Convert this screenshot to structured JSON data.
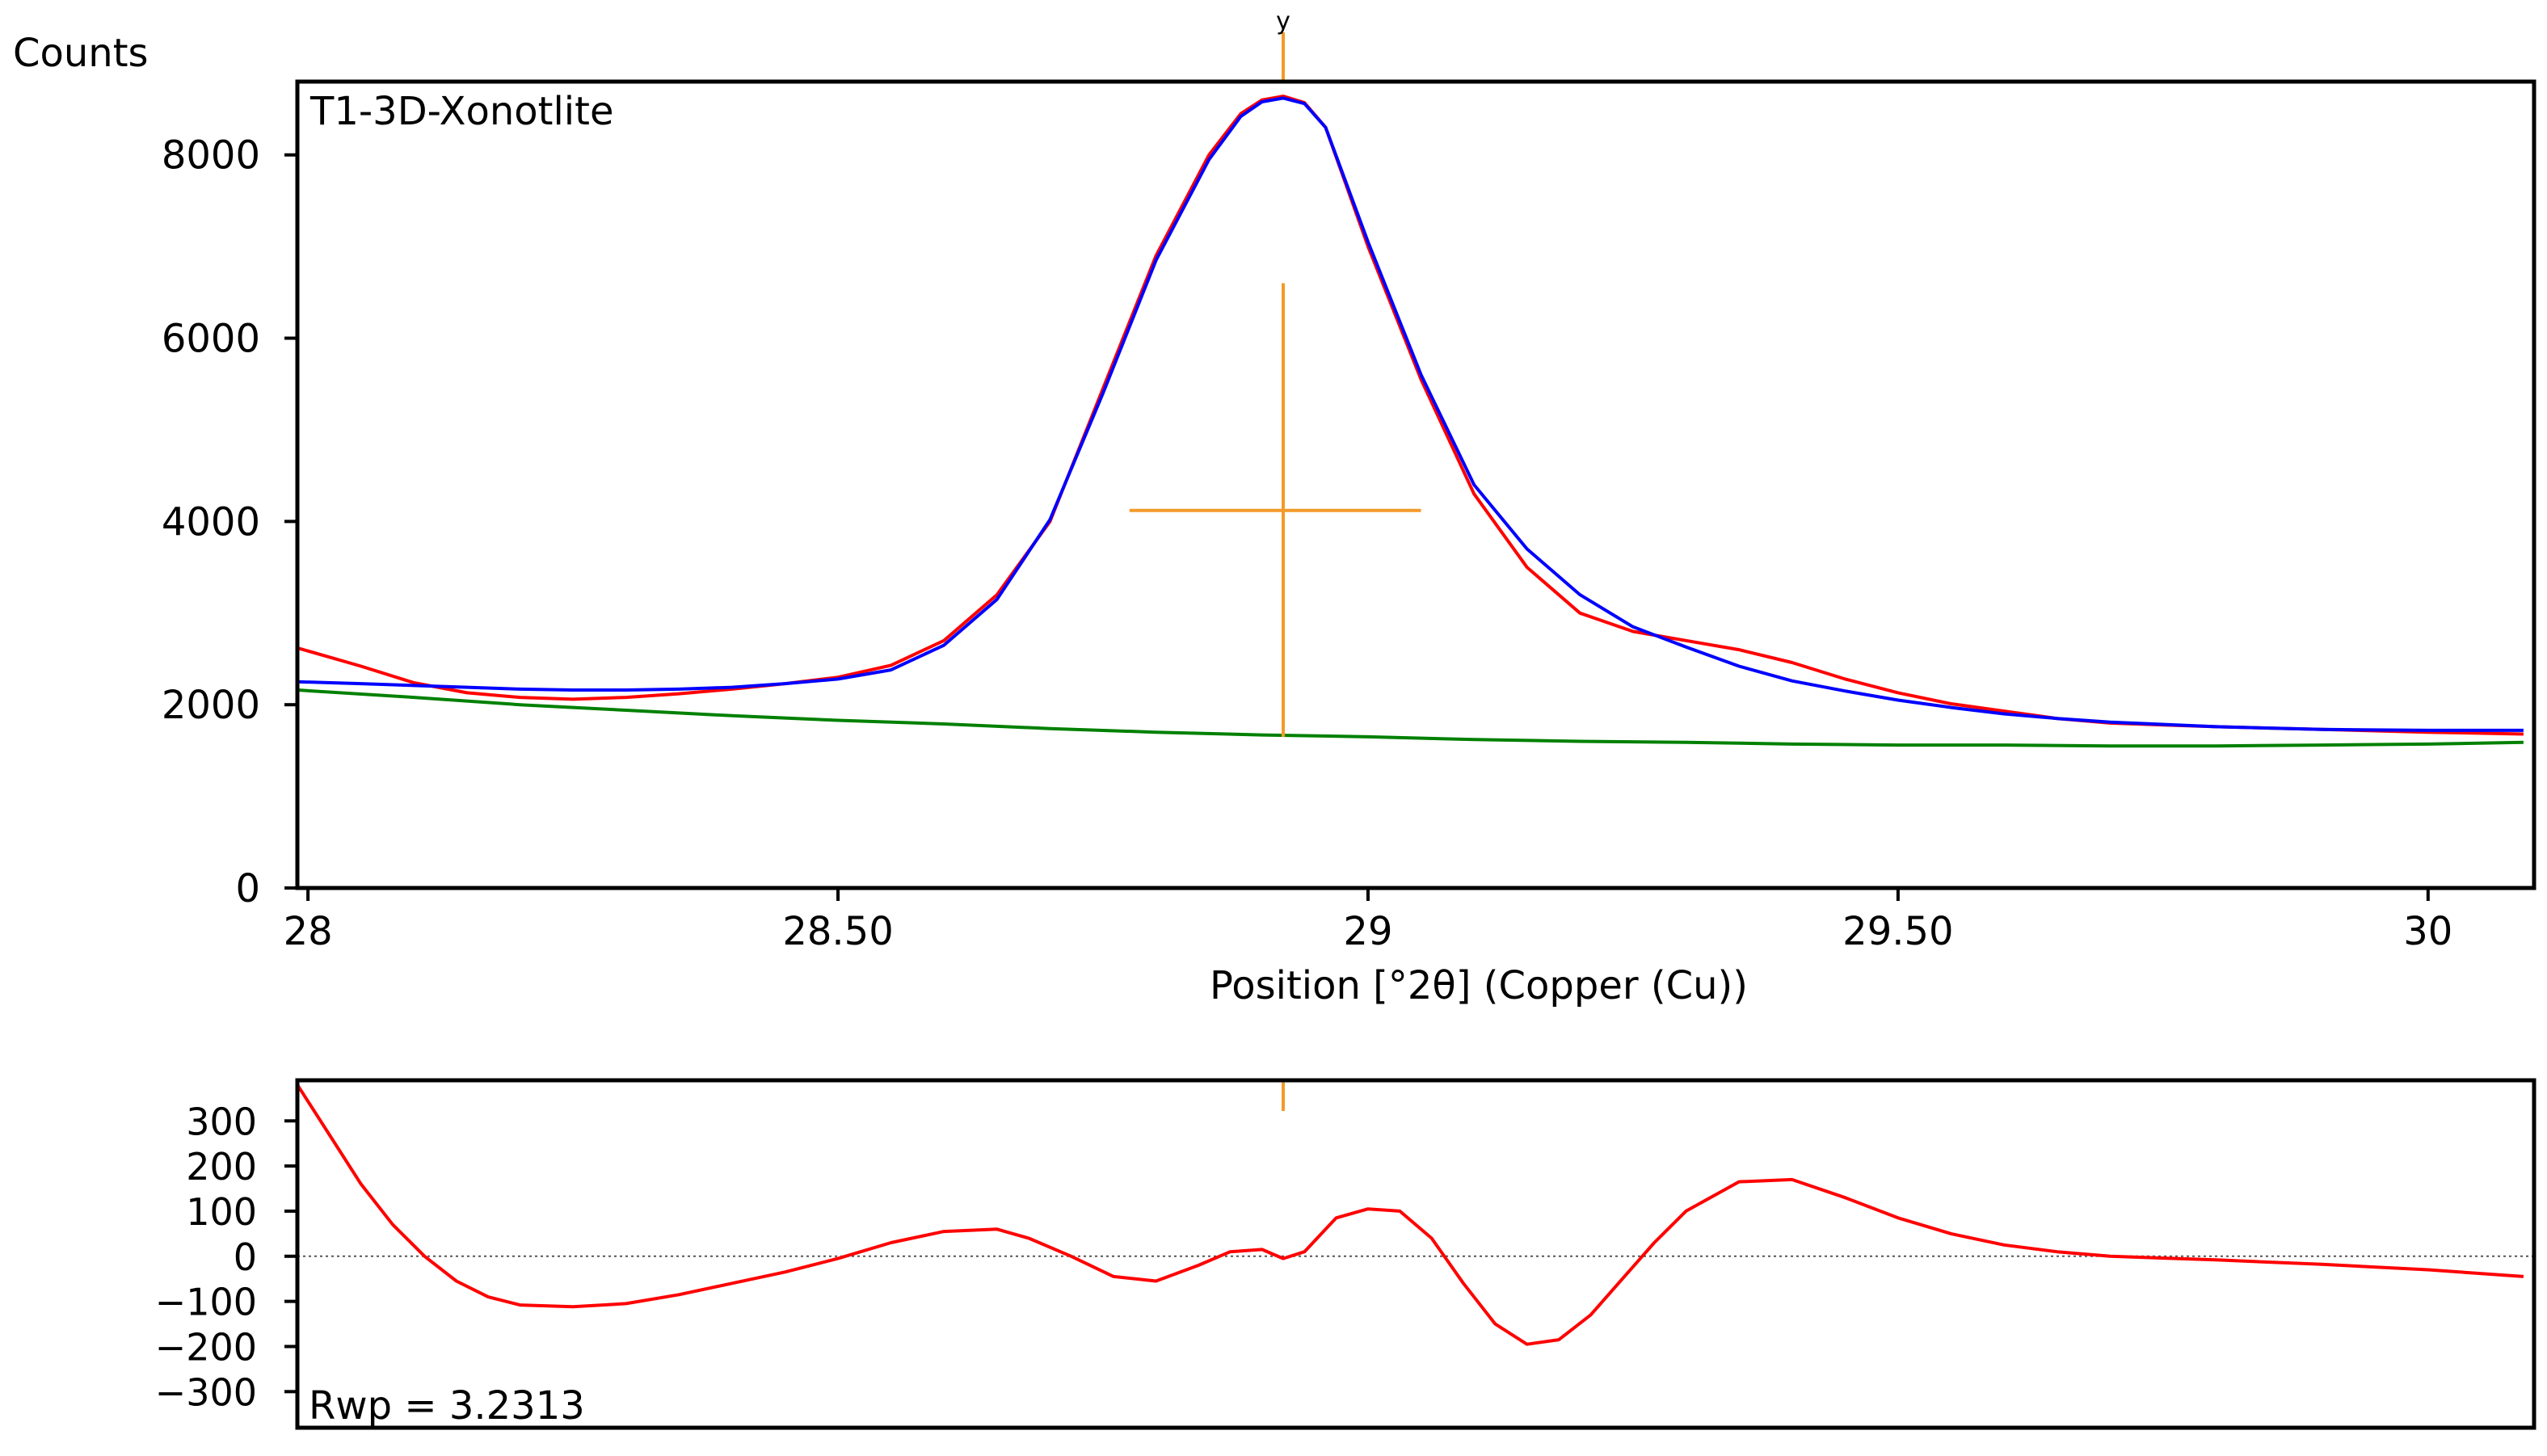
{
  "chart_data": [
    {
      "type": "line",
      "title": "T1-3D-Xonotlite",
      "xlabel": "Position [°2θ] (Copper (Cu))",
      "ylabel": "Counts",
      "xlim": [
        27.99,
        30.1
      ],
      "ylim": [
        0,
        8800
      ],
      "x_ticks": [
        28,
        28.5,
        29,
        29.5,
        30
      ],
      "x_tick_labels": [
        "28",
        "28.50",
        "29",
        "29.50",
        "30"
      ],
      "y_ticks": [
        0,
        2000,
        4000,
        6000,
        8000
      ],
      "y_tick_labels": [
        "0",
        "2000",
        "4000",
        "6000",
        "8000"
      ],
      "grid": false,
      "colors": {
        "observed": "#ff0000",
        "calculated": "#0000ff",
        "background": "#008000",
        "marker": "#f39a2a"
      },
      "series": [
        {
          "role": "observed",
          "x": [
            27.99,
            28.05,
            28.1,
            28.15,
            28.2,
            28.25,
            28.3,
            28.35,
            28.4,
            28.45,
            28.5,
            28.55,
            28.6,
            28.65,
            28.7,
            28.75,
            28.8,
            28.85,
            28.88,
            28.9,
            28.92,
            28.94,
            28.96,
            29.0,
            29.05,
            29.1,
            29.15,
            29.2,
            29.25,
            29.3,
            29.35,
            29.4,
            29.45,
            29.5,
            29.55,
            29.6,
            29.65,
            29.7,
            29.8,
            29.9,
            30.0,
            30.09
          ],
          "y": [
            2620,
            2420,
            2240,
            2130,
            2080,
            2060,
            2080,
            2120,
            2170,
            2230,
            2300,
            2430,
            2700,
            3200,
            4000,
            5450,
            6900,
            8000,
            8450,
            8600,
            8640,
            8570,
            8300,
            7000,
            5550,
            4300,
            3500,
            3000,
            2800,
            2700,
            2600,
            2460,
            2280,
            2130,
            2010,
            1930,
            1850,
            1800,
            1760,
            1730,
            1700,
            1680
          ]
        },
        {
          "role": "calculated",
          "x": [
            27.99,
            28.05,
            28.1,
            28.15,
            28.2,
            28.25,
            28.3,
            28.35,
            28.4,
            28.45,
            28.5,
            28.55,
            28.6,
            28.65,
            28.7,
            28.75,
            28.8,
            28.85,
            28.88,
            28.9,
            28.92,
            28.94,
            28.96,
            29.0,
            29.05,
            29.1,
            29.15,
            29.2,
            29.25,
            29.3,
            29.35,
            29.4,
            29.45,
            29.5,
            29.55,
            29.6,
            29.65,
            29.7,
            29.8,
            29.9,
            30.0,
            30.09
          ],
          "y": [
            2250,
            2230,
            2210,
            2190,
            2170,
            2160,
            2160,
            2170,
            2190,
            2230,
            2280,
            2380,
            2650,
            3150,
            4020,
            5400,
            6850,
            7950,
            8420,
            8580,
            8620,
            8560,
            8300,
            7050,
            5600,
            4400,
            3700,
            3200,
            2850,
            2630,
            2420,
            2260,
            2150,
            2050,
            1970,
            1900,
            1850,
            1810,
            1760,
            1730,
            1720,
            1720
          ]
        },
        {
          "role": "background",
          "x": [
            27.99,
            28.1,
            28.2,
            28.3,
            28.4,
            28.5,
            28.6,
            28.7,
            28.8,
            28.9,
            29.0,
            29.1,
            29.2,
            29.3,
            29.4,
            29.5,
            29.6,
            29.7,
            29.8,
            29.9,
            30.0,
            30.09
          ],
          "y": [
            2160,
            2080,
            2000,
            1940,
            1880,
            1830,
            1790,
            1740,
            1700,
            1670,
            1650,
            1620,
            1600,
            1590,
            1570,
            1560,
            1560,
            1550,
            1550,
            1560,
            1570,
            1590
          ]
        }
      ],
      "peak_marker": {
        "x": 28.92,
        "y_top": 6600,
        "y_bottom": 1650,
        "y_center": 4120,
        "x_left": 28.775,
        "x_right": 29.05,
        "top_label": "y"
      }
    },
    {
      "type": "line",
      "subtitle": "Rwp = 3.2313",
      "xlim": [
        27.99,
        30.1
      ],
      "ylim": [
        -380,
        390
      ],
      "y_ticks": [
        300,
        200,
        100,
        0,
        -100,
        -200,
        -300
      ],
      "y_tick_labels": [
        "300",
        "200",
        "100",
        "0",
        "−100",
        "−200",
        "−300"
      ],
      "zero_line": true,
      "series": [
        {
          "role": "difference",
          "x": [
            27.99,
            28.02,
            28.05,
            28.08,
            28.11,
            28.14,
            28.17,
            28.2,
            28.25,
            28.3,
            28.35,
            28.4,
            28.45,
            28.5,
            28.55,
            28.6,
            28.65,
            28.68,
            28.72,
            28.76,
            28.8,
            28.84,
            28.87,
            28.9,
            28.92,
            28.94,
            28.97,
            29.0,
            29.03,
            29.06,
            29.09,
            29.12,
            29.15,
            29.18,
            29.21,
            29.24,
            29.27,
            29.3,
            29.35,
            29.4,
            29.45,
            29.5,
            29.55,
            29.6,
            29.65,
            29.7,
            29.8,
            29.9,
            30.0,
            30.09
          ],
          "y": [
            380,
            270,
            160,
            70,
            0,
            -55,
            -90,
            -108,
            -112,
            -105,
            -85,
            -60,
            -35,
            -5,
            30,
            55,
            60,
            40,
            0,
            -45,
            -55,
            -20,
            10,
            15,
            -5,
            10,
            85,
            105,
            100,
            40,
            -60,
            -150,
            -195,
            -185,
            -130,
            -50,
            30,
            100,
            165,
            170,
            130,
            85,
            50,
            25,
            10,
            0,
            -8,
            -18,
            -30,
            -45
          ]
        }
      ],
      "peak_marker": {
        "x": 28.92
      }
    }
  ]
}
